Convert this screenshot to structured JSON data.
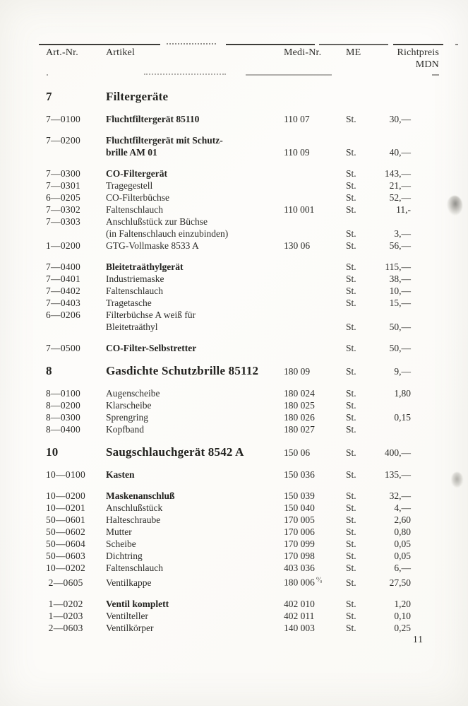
{
  "page_number": "11",
  "header": {
    "art": "Art.-Nr.",
    "artikel": "Artikel",
    "medi": "Medi-Nr.",
    "me": "ME",
    "price_line1": "Richtpreis",
    "price_line2": "MDN"
  },
  "sections": [
    {
      "number": "7",
      "title": "Filtergeräte",
      "medi": "",
      "me": "",
      "price": "",
      "groups": [
        [
          {
            "art": "7—0100",
            "name": "Fluchtfiltergerät 85110",
            "bold": true,
            "medi": "110 07",
            "me": "St.",
            "price": "30,—"
          }
        ],
        [
          {
            "art": "7—0200",
            "name": "Fluchtfiltergerät mit Schutz-",
            "name2": "brille AM 01",
            "bold": true,
            "medi": "110 09",
            "me": "St.",
            "price": "40,—"
          }
        ],
        [
          {
            "art": "7—0300",
            "name": "CO-Filtergerät",
            "bold": true,
            "medi": "",
            "me": "St.",
            "price": "143,—"
          },
          {
            "art": "7—0301",
            "name": "Tragegestell",
            "bold": false,
            "medi": "",
            "me": "St.",
            "price": "21,—"
          },
          {
            "art": "6—0205",
            "name": "CO-Filterbüchse",
            "bold": false,
            "medi": "",
            "me": "St.",
            "price": "52,—"
          },
          {
            "art": "7—0302",
            "name": "Faltenschlauch",
            "bold": false,
            "medi": "110 001",
            "me": "St.",
            "price": "11,-"
          },
          {
            "art": "7—0303",
            "name": "Anschlußstück zur Büchse",
            "name2": "(in Faltenschlauch einzubinden)",
            "bold": false,
            "medi": "",
            "me": "St.",
            "price": "3,—"
          },
          {
            "art": "1—0200",
            "name": "GTG-Vollmaske 8533 A",
            "bold": false,
            "medi": "130 06",
            "me": "St.",
            "price": "56,—"
          }
        ],
        [
          {
            "art": "7—0400",
            "name": "Bleitetraäthylgerät",
            "bold": true,
            "medi": "",
            "me": "St.",
            "price": "115,—"
          },
          {
            "art": "7—0401",
            "name": "Industriemaske",
            "bold": false,
            "medi": "",
            "me": "St.",
            "price": "38,—"
          },
          {
            "art": "7—0402",
            "name": "Faltenschlauch",
            "bold": false,
            "medi": "",
            "me": "St.",
            "price": "10,—"
          },
          {
            "art": "7—0403",
            "name": "Tragetasche",
            "bold": false,
            "medi": "",
            "me": "St.",
            "price": "15,—"
          },
          {
            "art": "6—0206",
            "name": "Filterbüchse A weiß für",
            "name2": "Bleitetraäthyl",
            "bold": false,
            "medi": "",
            "me": "St.",
            "price": "50,—"
          }
        ],
        [
          {
            "art": "7—0500",
            "name": "CO-Filter-Selbstretter",
            "bold": true,
            "medi": "",
            "me": "St.",
            "price": "50,—"
          }
        ]
      ]
    },
    {
      "number": "8",
      "title": "Gasdichte Schutzbrille 85112",
      "medi": "180 09",
      "me": "St.",
      "price": "9,—",
      "groups": [
        [
          {
            "art": "8—0100",
            "name": "Augenscheibe",
            "bold": false,
            "medi": "180 024",
            "me": "St.",
            "price": "1,80"
          },
          {
            "art": "8—0200",
            "name": "Klarscheibe",
            "bold": false,
            "medi": "180 025",
            "me": "St.",
            "price": ""
          },
          {
            "art": "8—0300",
            "name": "Sprengring",
            "bold": false,
            "medi": "180 026",
            "me": "St.",
            "price": "0,15"
          },
          {
            "art": "8—0400",
            "name": "Kopfband",
            "bold": false,
            "medi": "180 027",
            "me": "St.",
            "price": ""
          }
        ]
      ]
    },
    {
      "number": "10",
      "title": "Saugschlauchgerät 8542 A",
      "medi": "150 06",
      "me": "St.",
      "price": "400,—",
      "groups": [
        [
          {
            "art": "10—0100",
            "name": "Kasten",
            "bold": true,
            "medi": "150 036",
            "me": "St.",
            "price": "135,—"
          }
        ],
        [
          {
            "art": "10—0200",
            "name": "Maskenanschluß",
            "bold": true,
            "medi": "150 039",
            "me": "St.",
            "price": "32,—"
          },
          {
            "art": "10—0201",
            "name": "Anschlußstück",
            "bold": false,
            "medi": "150 040",
            "me": "St.",
            "price": "4,—"
          },
          {
            "art": "50—0601",
            "name": "Halteschraube",
            "bold": false,
            "medi": "170 005",
            "me": "St.",
            "price": "2,60"
          },
          {
            "art": "50—0602",
            "name": "Mutter",
            "bold": false,
            "medi": "170 006",
            "me": "St.",
            "price": "0,80"
          },
          {
            "art": "50—0604",
            "name": "Scheibe",
            "bold": false,
            "medi": "170 099",
            "me": "St.",
            "price": "0,05"
          },
          {
            "art": "50—0603",
            "name": "Dichtring",
            "bold": false,
            "medi": "170 098",
            "me": "St.",
            "price": "0,05"
          },
          {
            "art": "10—0202",
            "name": "Faltenschlauch",
            "bold": false,
            "medi": "403 036",
            "me": "St.",
            "price": "6,—"
          },
          {
            "art": " 2—0605",
            "name": "Ventilkappe",
            "bold": false,
            "medi": "180 006",
            "medi_note": "⁰⁄₀",
            "me": "St.",
            "price": "27,50"
          }
        ],
        [
          {
            "art": " 1—0202",
            "name": "Ventil komplett",
            "bold": true,
            "medi": "402 010",
            "me": "St.",
            "price": "1,20"
          },
          {
            "art": " 1—0203",
            "name": "Ventilteller",
            "bold": false,
            "medi": "402 011",
            "me": "St.",
            "price": "0,10"
          },
          {
            "art": " 2—0603",
            "name": "Ventilkörper",
            "bold": false,
            "medi": "140 003",
            "me": "St.",
            "price": "0,25"
          }
        ]
      ]
    }
  ]
}
